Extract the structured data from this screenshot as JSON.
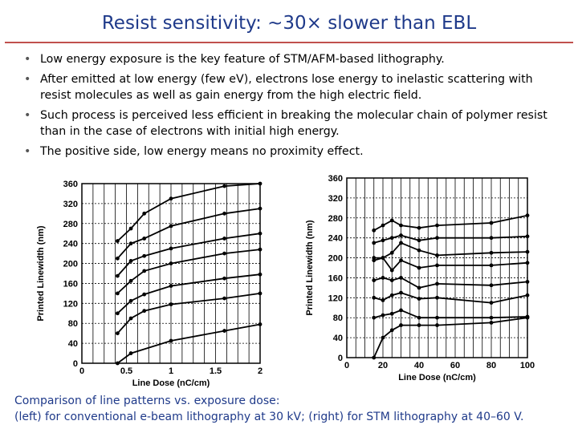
{
  "title": "Resist sensitivity: ~30× slower than EBL",
  "bullets": [
    "Low energy exposure is the key feature of STM/AFM-based lithography.",
    "After emitted at low energy (few eV), electrons lose energy to inelastic scattering with resist  molecules as well as gain energy from the high electric field.",
    "Such process is perceived less efficient in breaking the molecular chain of polymer resist than in the case of electrons with initial high energy.",
    "The positive side, low energy means no proximity effect."
  ],
  "caption": {
    "line1": "Comparison of line patterns vs. exposure dose:",
    "line2": "(left) for conventional e-beam lithography at 30 kV; (right) for STM lithography at 40–60 V."
  },
  "chart_data": [
    {
      "type": "line",
      "xlabel": "Line Dose (nC/cm)",
      "ylabel": "Printed Linewidth (nm)",
      "xlim": [
        0,
        2
      ],
      "ylim": [
        0,
        360
      ],
      "xticks": [
        "0",
        "0.5",
        "1",
        "1.5",
        "2"
      ],
      "yticks": [
        "0",
        "40",
        "80",
        "120",
        "160",
        "200",
        "240",
        "280",
        "320",
        "360"
      ],
      "grid": true,
      "series": [
        {
          "x": [
            0.4,
            0.55,
            1.0,
            1.6,
            2.0
          ],
          "y": [
            0,
            20,
            45,
            65,
            78
          ]
        },
        {
          "x": [
            0.4,
            0.55,
            0.7,
            1.0,
            1.6,
            2.0
          ],
          "y": [
            60,
            90,
            105,
            118,
            130,
            140
          ]
        },
        {
          "x": [
            0.4,
            0.55,
            0.7,
            1.0,
            1.6,
            2.0
          ],
          "y": [
            100,
            125,
            138,
            155,
            170,
            178
          ]
        },
        {
          "x": [
            0.4,
            0.55,
            0.7,
            1.0,
            1.6,
            2.0
          ],
          "y": [
            140,
            165,
            185,
            200,
            220,
            228
          ]
        },
        {
          "x": [
            0.4,
            0.55,
            0.7,
            1.0,
            1.6,
            2.0
          ],
          "y": [
            175,
            205,
            215,
            230,
            250,
            260
          ]
        },
        {
          "x": [
            0.4,
            0.55,
            0.7,
            1.0,
            1.6,
            2.0
          ],
          "y": [
            210,
            240,
            250,
            275,
            300,
            310
          ]
        },
        {
          "x": [
            0.4,
            0.55,
            0.7,
            1.0,
            1.6,
            2.0
          ],
          "y": [
            245,
            270,
            300,
            330,
            355,
            360
          ]
        }
      ]
    },
    {
      "type": "line",
      "xlabel": "Line Dose (nC/cm)",
      "ylabel": "Printed Linewidth (nm)",
      "xlim": [
        0,
        100
      ],
      "ylim": [
        0,
        360
      ],
      "xticks": [
        "0",
        "20",
        "40",
        "60",
        "80",
        "100"
      ],
      "yticks": [
        "0",
        "40",
        "80",
        "120",
        "160",
        "200",
        "240",
        "280",
        "320",
        "360"
      ],
      "grid": true,
      "series": [
        {
          "x": [
            15,
            20,
            25,
            30,
            40,
            50,
            80,
            100
          ],
          "y": [
            0,
            40,
            55,
            65,
            65,
            65,
            70,
            80
          ]
        },
        {
          "x": [
            15,
            20,
            25,
            30,
            40,
            50,
            80,
            100
          ],
          "y": [
            80,
            85,
            88,
            95,
            80,
            80,
            80,
            82
          ]
        },
        {
          "x": [
            15,
            20,
            25,
            30,
            40,
            50,
            80,
            100
          ],
          "y": [
            120,
            115,
            125,
            130,
            118,
            120,
            110,
            125
          ]
        },
        {
          "x": [
            15,
            20,
            25,
            30,
            40,
            50,
            80,
            100
          ],
          "y": [
            155,
            160,
            155,
            160,
            140,
            148,
            145,
            152
          ]
        },
        {
          "x": [
            15,
            20,
            25,
            30,
            40,
            50,
            80,
            100
          ],
          "y": [
            195,
            200,
            175,
            195,
            180,
            185,
            185,
            190
          ]
        },
        {
          "x": [
            15,
            20,
            25,
            30,
            40,
            50,
            80,
            100
          ],
          "y": [
            200,
            200,
            210,
            230,
            215,
            205,
            210,
            212
          ]
        },
        {
          "x": [
            15,
            20,
            25,
            30,
            40,
            50,
            80,
            100
          ],
          "y": [
            230,
            235,
            240,
            245,
            235,
            240,
            240,
            243
          ]
        },
        {
          "x": [
            15,
            20,
            25,
            30,
            40,
            50,
            80,
            100
          ],
          "y": [
            255,
            265,
            275,
            265,
            260,
            265,
            270,
            285
          ]
        }
      ]
    }
  ]
}
